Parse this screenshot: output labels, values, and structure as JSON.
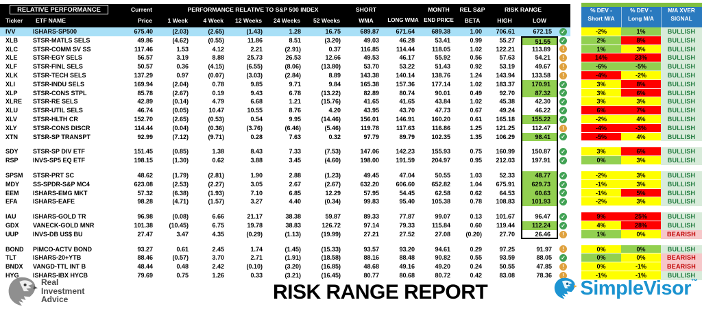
{
  "header": {
    "relative_performance": "RELATIVE PERFORMANCE",
    "current": "Current",
    "perf_relative": "PERFORMANCE RELATIVE TO S&P 500 INDEX",
    "risk_range": "RISK RANGE",
    "c_ticker": "Ticker",
    "c_name": "ETF NAME",
    "c_price": "Price",
    "c_w1": "1 Week",
    "c_w4": "4 Week",
    "c_w12": "12 Weeks",
    "c_w24": "24 Weeks",
    "c_w52": "52 Weeks",
    "c_swma_t": "SHORT",
    "c_swma_b": "WMA",
    "c_lwma": "LONG WMA",
    "c_me_t": "MONTH",
    "c_me_b": "END PRICE",
    "c_beta_t": "REL S&P",
    "c_beta_b": "BETA",
    "c_high": "HIGH",
    "c_low": "LOW",
    "c_devs_t": "% DEV -",
    "c_devs_b": "Short M/A",
    "c_devl_t": "% DEV -",
    "c_devl_b": "Long M/A",
    "c_sig_t": "M/A XVER",
    "c_sig_b": "SIGNAL"
  },
  "colors": {
    "yellow": "#FFFF00",
    "green": "#92D050",
    "red": "#FF0000",
    "bullish_bg": "#D8EBDA",
    "bullish_text": "#1F7A3D",
    "bearish_bg": "#F6C7C9",
    "bearish_text": "#C00000",
    "header_blue": "#2A7ABF",
    "header_green": "#7FBF3F",
    "row_highlight": "#A9E0F7",
    "check": "#41A254",
    "warn": "#DFA13D",
    "neg_red": "#FF0000",
    "brand_blue": "#1B93D0",
    "risk_box_border": "#000000"
  },
  "rows": [
    {
      "t": "IVV",
      "n": "ISHARS-SP500",
      "p": "675.40",
      "w1": "(2.03)",
      "w4": "(2.65)",
      "w12": "(1.43)",
      "w24": "1.28",
      "w52": "16.75",
      "sw": "689.87",
      "lw": "671.64",
      "me": "689.38",
      "b": "1.00",
      "h": "706.61",
      "l": "672.15",
      "lg": false,
      "ic": "check",
      "ds": "-2%",
      "dsc": "yellow",
      "dl": "1%",
      "dlc": "green",
      "sig": "BULLISH",
      "hl": true,
      "box": false
    },
    {
      "t": "XLB",
      "n": "STSR-MATLS SELS",
      "p": "49.86",
      "w1": "(4.62)",
      "w4": "(0.55)",
      "w12": "11.86",
      "w24": "8.51",
      "w52": "(3.20)",
      "sw": "49.03",
      "lw": "46.28",
      "me": "53.41",
      "b": "0.99",
      "h": "55.27",
      "l": "51.55",
      "lg": true,
      "ic": "check",
      "ds": "2%",
      "dsc": "green",
      "dl": "8%",
      "dlc": "red",
      "sig": "BULLISH",
      "box": true,
      "boxTop": true
    },
    {
      "t": "XLC",
      "n": "STSR-COMM SV SS",
      "p": "117.46",
      "w1": "1.53",
      "w4": "4.12",
      "w12": "2.21",
      "w24": "(2.91)",
      "w52": "0.37",
      "sw": "116.85",
      "lw": "114.44",
      "me": "118.05",
      "b": "1.02",
      "h": "122.21",
      "l": "113.89",
      "lg": false,
      "ic": "warn",
      "ds": "1%",
      "dsc": "green",
      "dl": "3%",
      "dlc": "yellow",
      "sig": "BULLISH",
      "box": true
    },
    {
      "t": "XLE",
      "n": "STSR-EGY SELS",
      "p": "56.57",
      "w1": "3.19",
      "w4": "8.88",
      "w12": "25.73",
      "w24": "26.53",
      "w52": "12.66",
      "sw": "49.53",
      "lw": "46.17",
      "me": "55.92",
      "b": "0.56",
      "h": "57.63",
      "l": "54.21",
      "lg": false,
      "ic": "warn",
      "ds": "14%",
      "dsc": "red",
      "dl": "23%",
      "dlc": "red",
      "sig": "BULLISH",
      "box": true
    },
    {
      "t": "XLF",
      "n": "STSR-FINL SELS",
      "p": "50.57",
      "w1": "0.36",
      "w4": "(4.15)",
      "w12": "(6.55)",
      "w24": "(8.06)",
      "w52": "(13.80)",
      "sw": "53.70",
      "lw": "53.22",
      "me": "51.43",
      "b": "0.92",
      "h": "53.19",
      "l": "49.67",
      "lg": false,
      "ic": "warn",
      "ds": "-6%",
      "dsc": "green",
      "dl": "-5%",
      "dlc": "green",
      "sig": "BULLISH",
      "box": true
    },
    {
      "t": "XLK",
      "n": "STSR-TECH SELS",
      "p": "137.29",
      "w1": "0.97",
      "w4": "(0.07)",
      "w12": "(3.03)",
      "w24": "(2.84)",
      "w52": "8.89",
      "sw": "143.38",
      "lw": "140.14",
      "me": "138.76",
      "b": "1.24",
      "h": "143.94",
      "l": "133.58",
      "lg": false,
      "ic": "warn",
      "ds": "-4%",
      "dsc": "red",
      "dl": "-2%",
      "dlc": "yellow",
      "sig": "BULLISH",
      "box": true
    },
    {
      "t": "XLI",
      "n": "STSR-INDU SELS",
      "p": "169.94",
      "w1": "(2.04)",
      "w4": "0.78",
      "w12": "9.85",
      "w24": "9.71",
      "w52": "9.84",
      "sw": "165.38",
      "lw": "157.36",
      "me": "177.14",
      "b": "1.02",
      "h": "183.37",
      "l": "170.91",
      "lg": true,
      "ic": "check",
      "ds": "3%",
      "dsc": "yellow",
      "dl": "8%",
      "dlc": "red",
      "sig": "BULLISH",
      "box": true
    },
    {
      "t": "XLP",
      "n": "STSR-CONS STPL",
      "p": "85.78",
      "w1": "(2.67)",
      "w4": "0.19",
      "w12": "9.43",
      "w24": "6.78",
      "w52": "(13.22)",
      "sw": "82.89",
      "lw": "80.74",
      "me": "90.01",
      "b": "0.49",
      "h": "92.70",
      "l": "87.32",
      "lg": true,
      "ic": "check",
      "ds": "3%",
      "dsc": "yellow",
      "dl": "6%",
      "dlc": "red",
      "sig": "BULLISH",
      "box": true
    },
    {
      "t": "XLRE",
      "n": "STSR-RE SELS",
      "p": "42.89",
      "w1": "(0.14)",
      "w4": "4.79",
      "w12": "6.68",
      "w24": "1.21",
      "w52": "(15.76)",
      "sw": "41.65",
      "lw": "41.65",
      "me": "43.84",
      "b": "1.02",
      "h": "45.38",
      "l": "42.30",
      "lg": false,
      "ic": "check",
      "ds": "3%",
      "dsc": "yellow",
      "dl": "3%",
      "dlc": "yellow",
      "sig": "BULLISH",
      "box": true
    },
    {
      "t": "XLU",
      "n": "STSR-UTIL SELS",
      "p": "46.74",
      "w1": "(0.05)",
      "w4": "10.47",
      "w12": "10.55",
      "w24": "8.76",
      "w52": "4.20",
      "sw": "43.95",
      "lw": "43.70",
      "me": "47.73",
      "b": "0.67",
      "h": "49.24",
      "l": "46.22",
      "lg": false,
      "ic": "check",
      "ds": "6%",
      "dsc": "red",
      "dl": "7%",
      "dlc": "red",
      "sig": "BULLISH",
      "box": true
    },
    {
      "t": "XLV",
      "n": "STSR-HLTH CR",
      "p": "152.70",
      "w1": "(2.65)",
      "w4": "(0.53)",
      "w12": "0.54",
      "w24": "9.95",
      "w52": "(14.46)",
      "sw": "156.01",
      "lw": "146.91",
      "me": "160.20",
      "b": "0.61",
      "h": "165.18",
      "l": "155.22",
      "lg": true,
      "ic": "check",
      "ds": "-2%",
      "dsc": "yellow",
      "dl": "4%",
      "dlc": "yellow",
      "sig": "BULLISH",
      "box": true
    },
    {
      "t": "XLY",
      "n": "STSR-CONS DISCR",
      "p": "114.44",
      "w1": "(0.04)",
      "w4": "(0.36)",
      "w12": "(3.76)",
      "w24": "(6.46)",
      "w52": "(5.46)",
      "sw": "119.78",
      "lw": "117.63",
      "me": "116.86",
      "b": "1.25",
      "h": "121.25",
      "l": "112.47",
      "lg": false,
      "ic": "warn",
      "ds": "-4%",
      "dsc": "red",
      "dl": "-3%",
      "dlc": "red",
      "sig": "BULLISH",
      "box": true
    },
    {
      "t": "XTN",
      "n": "STSR-SP TRANSPT",
      "p": "92.99",
      "w1": "(7.12)",
      "w4": "(9.71)",
      "w12": "0.28",
      "w24": "7.63",
      "w52": "0.32",
      "sw": "97.79",
      "lw": "89.79",
      "me": "102.35",
      "b": "1.35",
      "h": "106.29",
      "l": "98.41",
      "lg": true,
      "ic": "check",
      "ds": "-5%",
      "dsc": "red",
      "dl": "4%",
      "dlc": "yellow",
      "sig": "BULLISH",
      "box": true
    },
    {
      "gap": true,
      "box": true
    },
    {
      "t": "SDY",
      "n": "STSR-SP DIV ETF",
      "p": "151.45",
      "w1": "(0.85)",
      "w4": "1.38",
      "w12": "8.43",
      "w24": "7.33",
      "w52": "(7.53)",
      "sw": "147.06",
      "lw": "142.23",
      "me": "155.93",
      "b": "0.75",
      "h": "160.99",
      "l": "150.87",
      "lg": false,
      "ic": "check",
      "ds": "3%",
      "dsc": "yellow",
      "dl": "6%",
      "dlc": "red",
      "sig": "BULLISH",
      "box": true
    },
    {
      "t": "RSP",
      "n": "INVS-SP5 EQ ETF",
      "p": "198.15",
      "w1": "(1.30)",
      "w4": "0.62",
      "w12": "3.88",
      "w24": "3.45",
      "w52": "(4.60)",
      "sw": "198.00",
      "lw": "191.59",
      "me": "204.97",
      "b": "0.95",
      "h": "212.03",
      "l": "197.91",
      "lg": false,
      "ic": "check",
      "ds": "0%",
      "dsc": "green",
      "dl": "3%",
      "dlc": "yellow",
      "sig": "BULLISH",
      "box": true
    },
    {
      "gap": true,
      "box": true
    },
    {
      "t": "SPSM",
      "n": "STSR-PRT SC",
      "p": "48.62",
      "w1": "(1.79)",
      "w4": "(2.81)",
      "w12": "1.90",
      "w24": "2.88",
      "w52": "(1.23)",
      "sw": "49.45",
      "lw": "47.04",
      "me": "50.55",
      "b": "1.03",
      "h": "52.33",
      "l": "48.77",
      "lg": true,
      "ic": "check",
      "ds": "-2%",
      "dsc": "yellow",
      "dl": "3%",
      "dlc": "yellow",
      "sig": "BULLISH",
      "box": true
    },
    {
      "t": "MDY",
      "n": "SS-SPDR-S&P MC4",
      "p": "623.08",
      "w1": "(2.53)",
      "w4": "(2.27)",
      "w12": "3.05",
      "w24": "2.67",
      "w52": "(2.67)",
      "sw": "632.20",
      "lw": "606.60",
      "me": "652.82",
      "b": "1.04",
      "h": "675.91",
      "l": "629.73",
      "lg": true,
      "ic": "check",
      "ds": "-1%",
      "dsc": "yellow",
      "dl": "3%",
      "dlc": "yellow",
      "sig": "BULLISH",
      "box": true
    },
    {
      "t": "EEM",
      "n": "ISHARS-EMG MKT",
      "p": "57.32",
      "w1": "(6.38)",
      "w4": "(1.93)",
      "w12": "7.10",
      "w24": "6.85",
      "w52": "12.29",
      "sw": "57.95",
      "lw": "54.45",
      "me": "62.58",
      "b": "0.62",
      "h": "64.53",
      "l": "60.63",
      "lg": true,
      "ic": "check",
      "ds": "-1%",
      "dsc": "yellow",
      "dl": "5%",
      "dlc": "red",
      "sig": "BULLISH",
      "box": true
    },
    {
      "t": "EFA",
      "n": "ISHARS-EAFE",
      "p": "98.28",
      "w1": "(4.71)",
      "w4": "(1.57)",
      "w12": "3.27",
      "w24": "4.40",
      "w52": "(0.34)",
      "sw": "99.83",
      "lw": "95.40",
      "me": "105.38",
      "b": "0.78",
      "h": "108.83",
      "l": "101.93",
      "lg": true,
      "ic": "check",
      "ds": "-2%",
      "dsc": "yellow",
      "dl": "3%",
      "dlc": "yellow",
      "sig": "BULLISH",
      "box": true
    },
    {
      "gap": true,
      "box": true
    },
    {
      "t": "IAU",
      "n": "ISHARS-GOLD TR",
      "p": "96.98",
      "w1": "(0.08)",
      "w4": "6.66",
      "w12": "21.17",
      "w24": "38.38",
      "w52": "59.87",
      "sw": "89.33",
      "lw": "77.87",
      "me": "99.07",
      "b": "0.13",
      "h": "101.67",
      "l": "96.47",
      "lg": false,
      "ic": "check",
      "ds": "9%",
      "dsc": "red",
      "dl": "25%",
      "dlc": "red",
      "sig": "BULLISH",
      "box": true
    },
    {
      "t": "GDX",
      "n": "VANECK-GOLD MNR",
      "p": "101.38",
      "w1": "(10.45)",
      "w4": "6.75",
      "w12": "19.78",
      "w24": "38.83",
      "w52": "126.72",
      "sw": "97.14",
      "lw": "79.33",
      "me": "115.84",
      "b": "0.60",
      "h": "119.44",
      "l": "112.24",
      "lg": true,
      "ic": "check",
      "ds": "4%",
      "dsc": "yellow",
      "dl": "28%",
      "dlc": "red",
      "sig": "BULLISH",
      "box": true
    },
    {
      "t": "UUP",
      "n": "INVS-DB US$ BU",
      "p": "27.47",
      "w1": "3.47",
      "w4": "4.35",
      "w12": "(0.29)",
      "w24": "(1.13)",
      "w52": "(19.99)",
      "sw": "27.21",
      "lw": "27.52",
      "me": "27.08",
      "b": "(0.20)",
      "h": "27.70",
      "l": "26.46",
      "lg": false,
      "ic": "warn",
      "ds": "1%",
      "dsc": "green",
      "dl": "0%",
      "dlc": "yellow",
      "sig": "BEARISH",
      "box": true,
      "boxBottom": true
    },
    {
      "gap": true,
      "box": false
    },
    {
      "t": "BOND",
      "n": "PIMCO-ACTV BOND",
      "p": "93.27",
      "w1": "0.61",
      "w4": "2.45",
      "w12": "1.74",
      "w24": "(1.45)",
      "w52": "(15.33)",
      "sw": "93.57",
      "lw": "93.20",
      "me": "94.61",
      "b": "0.29",
      "h": "97.25",
      "l": "91.97",
      "lg": false,
      "ic": "warn",
      "ds": "0%",
      "dsc": "yellow",
      "dl": "0%",
      "dlc": "green",
      "sig": "BULLISH",
      "box": false
    },
    {
      "t": "TLT",
      "n": "ISHARS-20+YTB",
      "p": "88.46",
      "w1": "(0.57)",
      "w4": "3.70",
      "w12": "2.71",
      "w24": "(1.91)",
      "w52": "(18.58)",
      "sw": "88.16",
      "lw": "88.48",
      "me": "90.82",
      "b": "0.55",
      "h": "93.59",
      "l": "88.05",
      "lg": false,
      "ic": "check",
      "ds": "0%",
      "dsc": "green",
      "dl": "0%",
      "dlc": "yellow",
      "sig": "BEARISH",
      "box": false
    },
    {
      "t": "BNDX",
      "n": "VANGD-TTL INT B",
      "p": "48.44",
      "w1": "0.48",
      "w4": "2.42",
      "w12": "(0.10)",
      "w24": "(3.20)",
      "w52": "(16.85)",
      "sw": "48.68",
      "lw": "49.16",
      "me": "49.20",
      "b": "0.24",
      "h": "50.55",
      "l": "47.85",
      "lg": false,
      "ic": "warn",
      "ds": "0%",
      "dsc": "yellow",
      "dl": "-1%",
      "dlc": "yellow",
      "sig": "BEARISH",
      "box": false
    },
    {
      "t": "HYG",
      "n": "ISHARS-IBX HYCB",
      "p": "79.69",
      "w1": "0.75",
      "w4": "1.26",
      "w12": "0.33",
      "w24": "(3.21)",
      "w52": "(16.45)",
      "sw": "80.77",
      "lw": "80.68",
      "me": "80.72",
      "b": "0.42",
      "h": "83.08",
      "l": "78.36",
      "lg": false,
      "ic": "warn",
      "ds": "-1%",
      "dsc": "yellow",
      "dl": "-1%",
      "dlc": "yellow",
      "sig": "BULLISH",
      "box": false
    }
  ],
  "footer": {
    "brand_line1": "Real",
    "brand_line2": "Investment",
    "brand_line3": "Advice",
    "title": "RISK RANGE REPORT",
    "brand_right": "SimpleVisor",
    "trademark": "™"
  }
}
